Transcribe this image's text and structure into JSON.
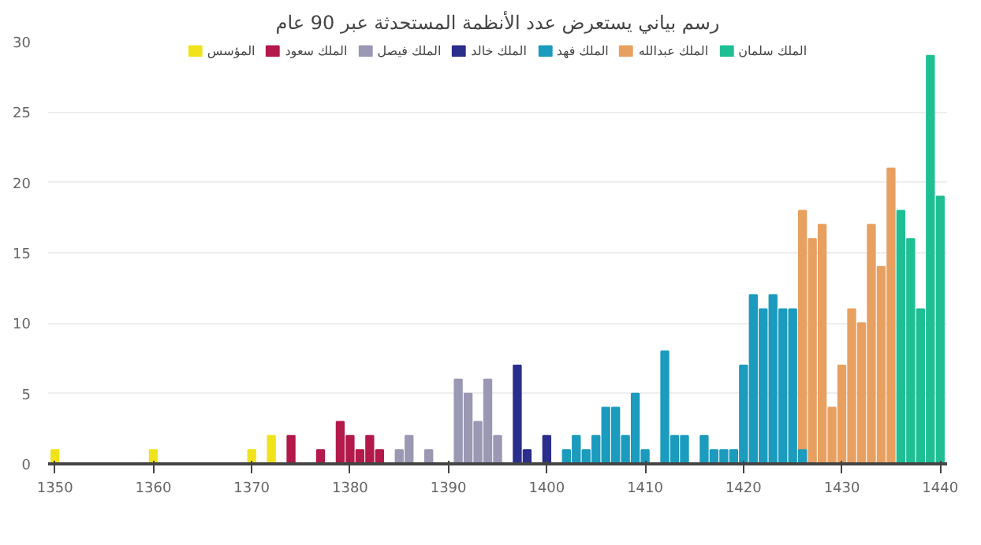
{
  "chart_data": {
    "type": "bar",
    "title": "رسم بياني يستعرض عدد الأنظمة المستحدثة عبر 90 عام",
    "xlim": [
      1349.3,
      1440.7
    ],
    "xticks": [
      1350,
      1360,
      1370,
      1380,
      1390,
      1400,
      1410,
      1420,
      1430,
      1440
    ],
    "ylim": [
      0,
      30
    ],
    "yticks": [
      0,
      5,
      10,
      15,
      20,
      25,
      30
    ],
    "grid": "y",
    "legend": "top",
    "series": [
      {
        "name": "الملك سلمان",
        "color": "#1fbf94",
        "x": [
          1436,
          1437,
          1438,
          1439,
          1440
        ],
        "values": [
          18,
          16,
          11,
          29,
          19
        ]
      },
      {
        "name": "الملك عبدالله",
        "color": "#e8a060",
        "x": [
          1426,
          1427,
          1428,
          1429,
          1430,
          1431,
          1432,
          1433,
          1434,
          1435
        ],
        "values": [
          18,
          16,
          17,
          4,
          7,
          11,
          10,
          17,
          14,
          21
        ]
      },
      {
        "name": "الملك فهد",
        "color": "#1b9bbd",
        "x": [
          1402,
          1403,
          1404,
          1405,
          1406,
          1407,
          1408,
          1409,
          1410,
          1412,
          1413,
          1414,
          1416,
          1417,
          1418,
          1419,
          1420,
          1421,
          1422,
          1423,
          1424,
          1425,
          1426
        ],
        "values": [
          1,
          2,
          1,
          2,
          4,
          4,
          2,
          5,
          1,
          8,
          2,
          2,
          2,
          1,
          1,
          1,
          7,
          12,
          11,
          12,
          11,
          11,
          1
        ]
      },
      {
        "name": "الملك خالد",
        "color": "#2b2e8c",
        "x": [
          1397,
          1398,
          1400
        ],
        "values": [
          7,
          1,
          2
        ]
      },
      {
        "name": "الملك فيصل",
        "color": "#9a98b3",
        "x": [
          1385,
          1386,
          1388,
          1391,
          1392,
          1393,
          1394,
          1395
        ],
        "values": [
          1,
          2,
          1,
          6,
          5,
          3,
          6,
          2
        ]
      },
      {
        "name": "الملك سعود",
        "color": "#b3194a",
        "x": [
          1374,
          1377,
          1379,
          1380,
          1381,
          1382,
          1383
        ],
        "values": [
          2,
          1,
          3,
          2,
          1,
          2,
          1
        ]
      },
      {
        "name": "المؤسس",
        "color": "#f0e31c",
        "x": [
          1350,
          1360,
          1370,
          1372
        ],
        "values": [
          1,
          1,
          1,
          2
        ]
      }
    ]
  }
}
